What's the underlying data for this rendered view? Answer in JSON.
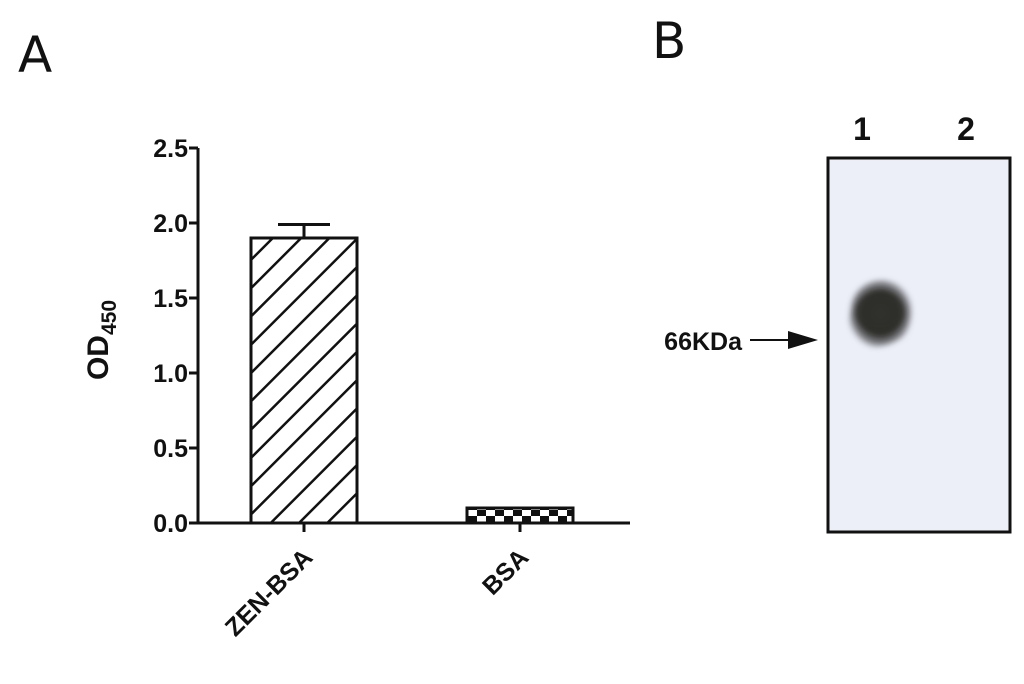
{
  "panels": {
    "a_label": "A",
    "b_label": "B"
  },
  "chart_data": {
    "type": "bar",
    "categories": [
      "ZEN-BSA",
      "BSA"
    ],
    "values": [
      1.9,
      0.1
    ],
    "errors": [
      0.09,
      0.0
    ],
    "fill_patterns": [
      "diagonal-hatch",
      "checkerboard"
    ],
    "ylabel": "OD",
    "ylabel_subscript": "450",
    "xlabel": "",
    "ylim": [
      0,
      2.5
    ],
    "yticks": [
      "0.0",
      "0.5",
      "1.0",
      "1.5",
      "2.0",
      "2.5"
    ],
    "ytick_values": [
      0,
      0.5,
      1.0,
      1.5,
      2.0,
      2.5
    ],
    "grid": false
  },
  "blot": {
    "lanes": [
      "1",
      "2"
    ],
    "marker_label": "66KDa",
    "band_lane": "1",
    "background_color": "#eceef8",
    "band_color": "#2b2b26"
  }
}
